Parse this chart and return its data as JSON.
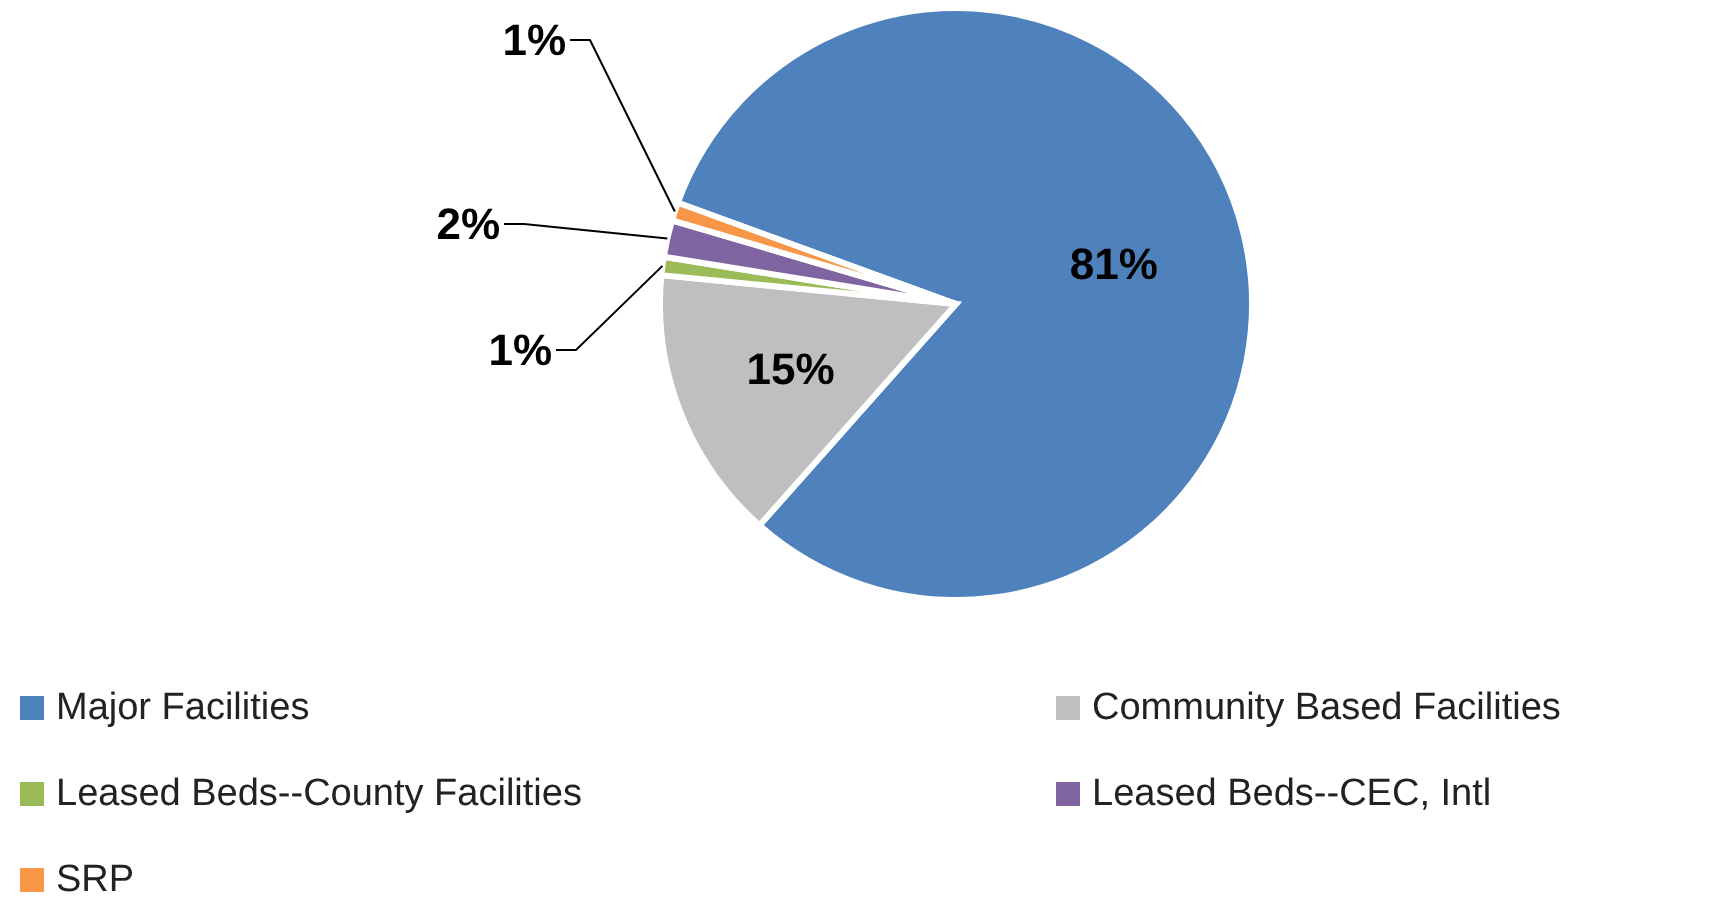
{
  "chart_data": {
    "type": "pie",
    "categories": [
      "Major Facilities",
      "Community Based Facilities",
      "Leased Beds--County Facilities",
      "Leased Beds--CEC, Intl",
      "SRP"
    ],
    "values": [
      81,
      15,
      1,
      2,
      1
    ],
    "colors": [
      "#4f81bd",
      "#bfbfbf",
      "#9bbb59",
      "#8064a2",
      "#f79646"
    ],
    "value_labels": [
      "81%",
      "15%",
      "1%",
      "2%",
      "1%"
    ],
    "legend": "bottom"
  }
}
